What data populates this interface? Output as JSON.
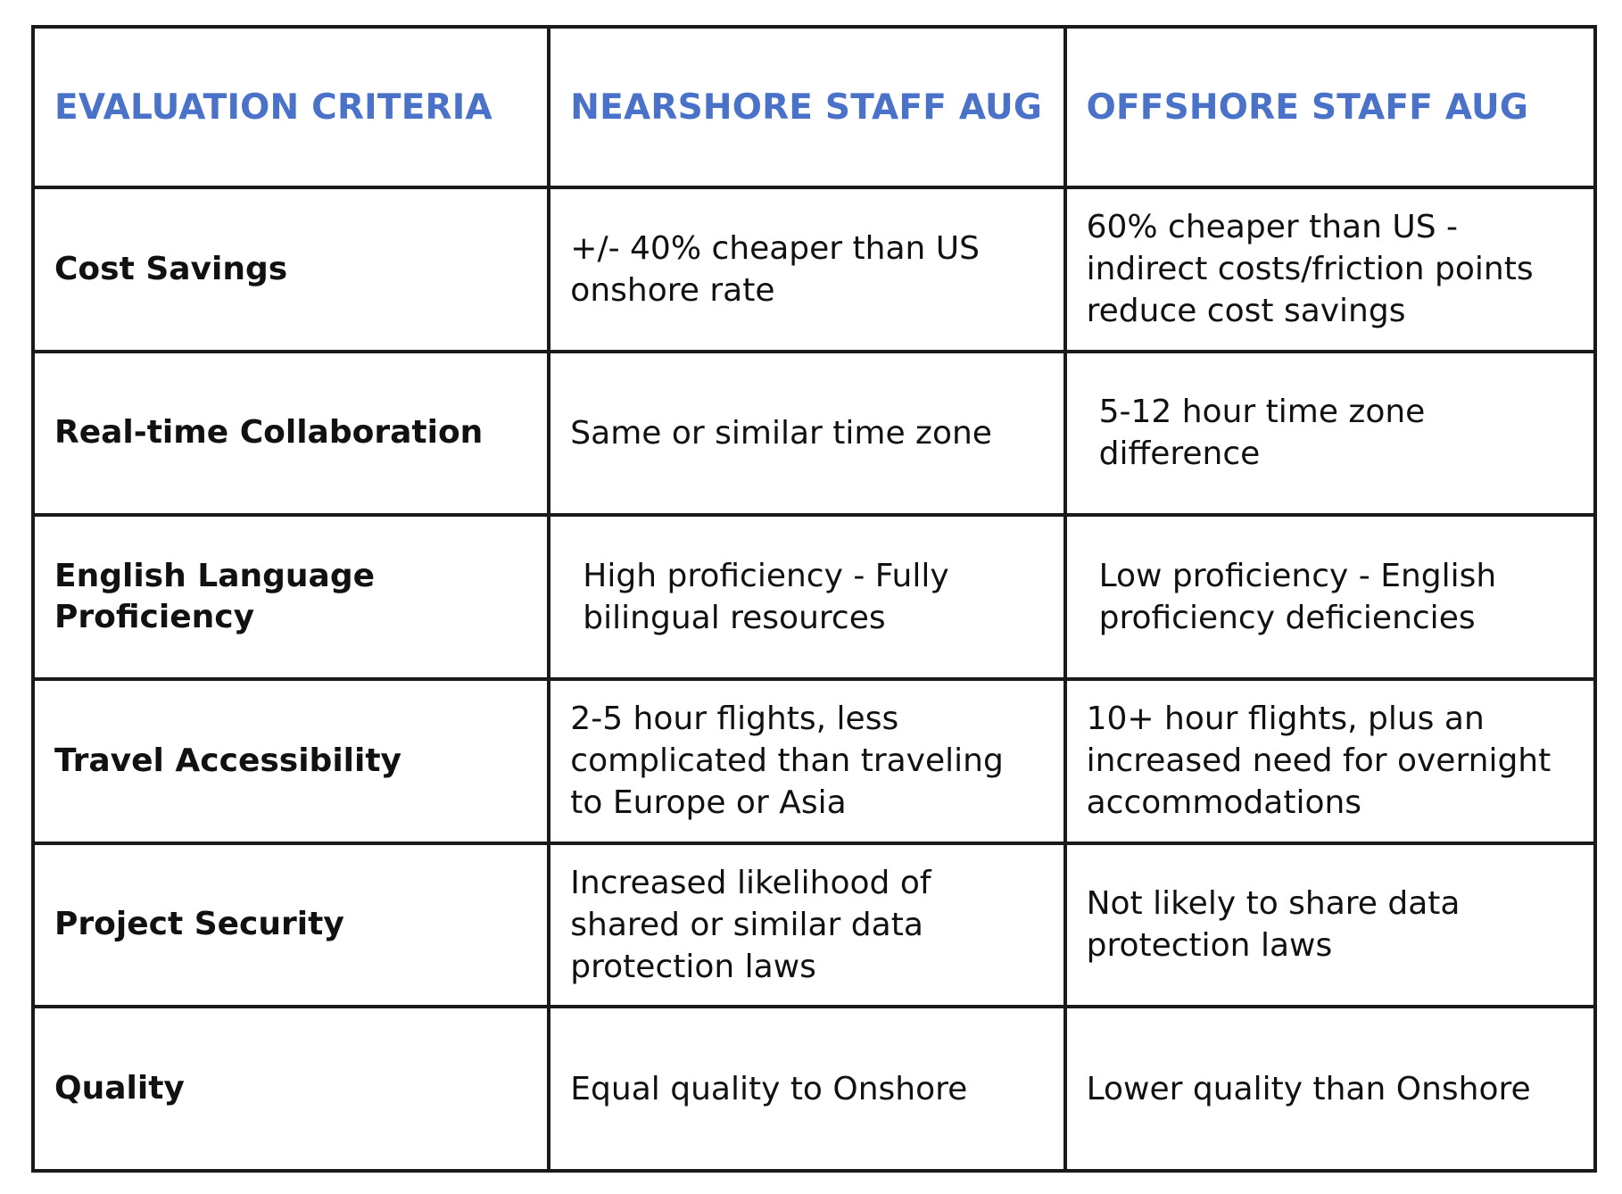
{
  "table": {
    "headers": [
      "EVALUATION CRITERIA",
      "NEARSHORE STAFF AUG",
      "OFFSHORE STAFF AUG"
    ],
    "rows": [
      {
        "criterion": "Cost Savings",
        "nearshore": "+/-  40% cheaper than US onshore rate",
        "offshore": "60% cheaper than US - indirect costs/friction points reduce cost savings"
      },
      {
        "criterion": "Real-time Collaboration",
        "nearshore": "Same or similar time zone",
        "offshore": "5-12 hour time zone difference"
      },
      {
        "criterion": "English Language Proficiency",
        "nearshore": "High proficiency - Fully bilingual resources",
        "offshore": "Low proficiency - English proficiency deficiencies"
      },
      {
        "criterion": "Travel Accessibility",
        "nearshore": "2-5 hour flights, less complicated than traveling to Europe or Asia",
        "offshore": "10+ hour flights, plus an increased need for overnight accommodations"
      },
      {
        "criterion": "Project Security",
        "nearshore": "Increased likelihood of shared or similar data protection laws",
        "offshore": "Not likely to share data protection laws"
      },
      {
        "criterion": "Quality",
        "nearshore": "Equal quality to Onshore",
        "offshore": "Lower quality than Onshore"
      }
    ]
  },
  "colors": {
    "header_text": "#4a72c8",
    "border": "#1a1a1a",
    "body_text": "#111111"
  }
}
